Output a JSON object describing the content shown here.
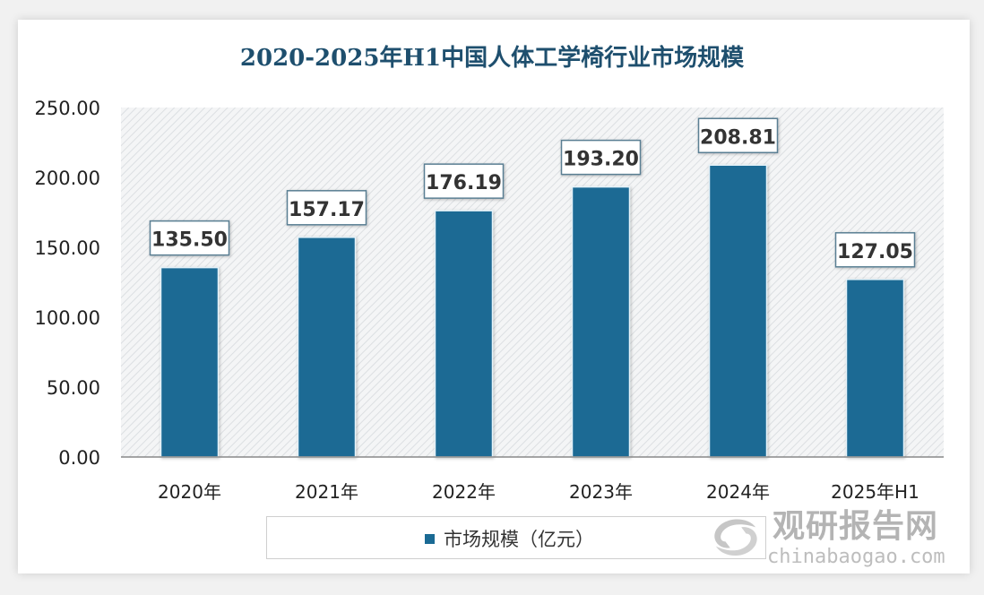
{
  "chart_data": {
    "type": "bar",
    "title": "2020-2025年H1中国人体工学椅行业市场规模",
    "categories": [
      "2020年",
      "2021年",
      "2022年",
      "2023年",
      "2024年",
      "2025年H1"
    ],
    "series": [
      {
        "name": "市场规模（亿元）",
        "values": [
          135.5,
          157.17,
          176.19,
          193.2,
          208.81,
          127.05
        ]
      }
    ],
    "data_labels": [
      "135.50",
      "157.17",
      "176.19",
      "193.20",
      "208.81",
      "127.05"
    ],
    "yticks": [
      "0.00",
      "50.00",
      "100.00",
      "150.00",
      "200.00",
      "250.00"
    ],
    "ylim": [
      0,
      250
    ],
    "grid": false,
    "legend_position": "bottom",
    "bar_color": "#1a6a94",
    "xlabel": "",
    "ylabel": ""
  },
  "watermark": {
    "cn": "观研报告网",
    "en": "chinabaogao.com"
  }
}
